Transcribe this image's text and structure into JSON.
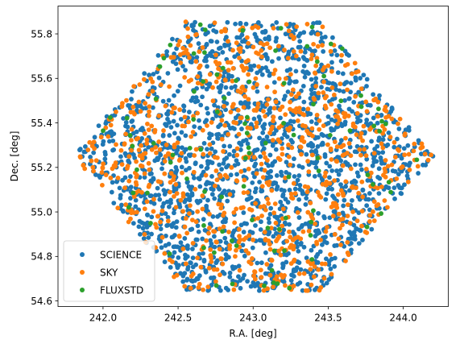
{
  "chart_data": {
    "type": "scatter",
    "title": "",
    "xlabel": "R.A. [deg]",
    "ylabel": "Dec. [deg]",
    "xlim": [
      241.7,
      244.3
    ],
    "ylim": [
      54.575,
      55.925
    ],
    "grid": false,
    "legend": "lower-left",
    "xticks": [
      242.0,
      242.5,
      243.0,
      243.5,
      244.0
    ],
    "xtick_labels": [
      "242.0",
      "242.5",
      "243.0",
      "243.5",
      "244.0"
    ],
    "yticks": [
      54.6,
      54.8,
      55.0,
      55.2,
      55.4,
      55.6,
      55.8
    ],
    "ytick_labels": [
      "54.6",
      "54.8",
      "55.0",
      "55.2",
      "55.4",
      "55.6",
      "55.8"
    ],
    "field": {
      "center": [
        243.0,
        55.25
      ],
      "vertices": [
        [
          242.55,
          55.855
        ],
        [
          243.45,
          55.855
        ],
        [
          244.2,
          55.25
        ],
        [
          243.45,
          54.645
        ],
        [
          242.55,
          54.645
        ],
        [
          241.8,
          55.25
        ]
      ],
      "holes": [
        [
          242.5,
          55.55
        ],
        [
          242.6,
          55.35
        ]
      ]
    },
    "series": [
      {
        "name": "SCIENCE",
        "color": "#1f77b4",
        "marker": "circle",
        "count": 1800
      },
      {
        "name": "SKY",
        "color": "#ff7f0e",
        "marker": "circle",
        "count": 850
      },
      {
        "name": "FLUXSTD",
        "color": "#2ca02c",
        "marker": "circle",
        "count": 100
      }
    ]
  }
}
